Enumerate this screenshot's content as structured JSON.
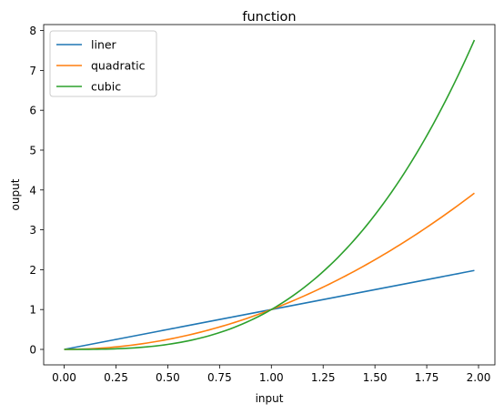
{
  "chart_data": {
    "type": "line",
    "title": "function",
    "xlabel": "input",
    "ylabel": "ouput",
    "xlim": [
      -0.099,
      2.079
    ],
    "ylim": [
      -0.3881,
      8.1502
    ],
    "xticks": [
      "0.00",
      "0.25",
      "0.50",
      "0.75",
      "1.00",
      "1.25",
      "1.50",
      "1.75",
      "2.00"
    ],
    "yticks": [
      "0",
      "1",
      "2",
      "3",
      "4",
      "5",
      "6",
      "7",
      "8"
    ],
    "grid": false,
    "legend_position": "top-left",
    "x": {
      "start": 0,
      "stop": 1.98,
      "step": 0.02
    },
    "series": [
      {
        "name": "liner",
        "color": "#1f77b4",
        "exponent": 1,
        "description": "y = x"
      },
      {
        "name": "quadratic",
        "color": "#ff7f0e",
        "exponent": 2,
        "description": "y = x^2"
      },
      {
        "name": "cubic",
        "color": "#2ca02c",
        "exponent": 3,
        "description": "y = x^3"
      }
    ]
  }
}
